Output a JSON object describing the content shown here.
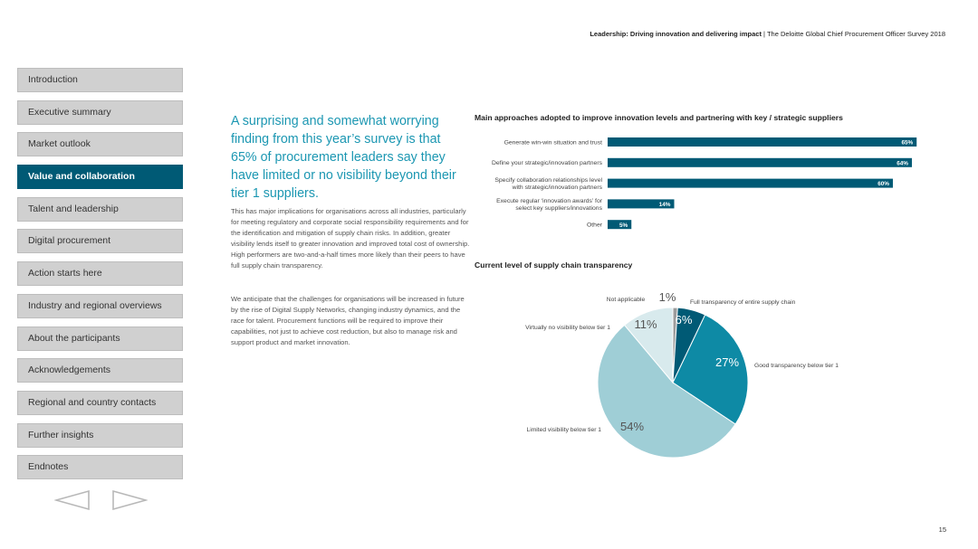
{
  "header": {
    "title_bold": "Leadership: Driving innovation and delivering impact",
    "separator": " | ",
    "title_rest": "The Deloitte Global Chief Procurement Officer Survey 2018"
  },
  "sidebar": {
    "items": [
      {
        "label": "Introduction",
        "active": false
      },
      {
        "label": "Executive summary",
        "active": false
      },
      {
        "label": "Market outlook",
        "active": false
      },
      {
        "label": "Value and collaboration",
        "active": true
      },
      {
        "label": "Talent and leadership",
        "active": false
      },
      {
        "label": "Digital procurement",
        "active": false
      },
      {
        "label": "Action starts here",
        "active": false
      },
      {
        "label": "Industry and regional overviews",
        "active": false
      },
      {
        "label": "About the participants",
        "active": false
      },
      {
        "label": "Acknowledgements",
        "active": false
      },
      {
        "label": "Regional and country contacts",
        "active": false
      },
      {
        "label": "Further insights",
        "active": false
      },
      {
        "label": "Endnotes",
        "active": false
      }
    ]
  },
  "main": {
    "headline": "A surprising and somewhat worrying finding from this year’s survey is that 65% of procurement leaders say they have limited or no visibility beyond their tier 1 suppliers.",
    "paragraph1": "This has major implications for organisations across all industries, particularly for meeting regulatory and corporate social responsibility requirements and for the identification and mitigation of supply chain risks. In addition, greater visibility lends itself to greater innovation and improved total cost of ownership. High performers are two-and-a-half times more likely than their peers to have full supply chain transparency.",
    "paragraph2": "We anticipate that the challenges for organisations will be increased in future by the rise of Digital Supply Networks, changing industry dynamics, and the race for talent. Procurement functions will be required to improve their capabilities, not just to achieve cost reduction, but also to manage risk and support product and market innovation."
  },
  "colors": {
    "accent": "#005a75",
    "headline": "#1c97b2",
    "nav_bg": "#d0d0d0",
    "bar": "#005a75",
    "pie": [
      "#9c9c9c",
      "#005a75",
      "#0e8aa5",
      "#9fced6",
      "#d8eaed"
    ]
  },
  "chart_data": [
    {
      "type": "bar",
      "orientation": "horizontal",
      "title": "Main approaches adopted to improve innovation levels and partnering with key / strategic suppliers",
      "categories": [
        "Generate win-win situation and trust",
        "Define your strategic/innovation partners",
        "Specify collaboration relationships level with strategic/innovation partners",
        "Execute regular ‘innovation awards’ for select key suppliers/innovations",
        "Other"
      ],
      "category_lines": [
        [
          "Generate win-win situation and trust"
        ],
        [
          "Define your strategic/innovation partners"
        ],
        [
          "Specify collaboration relationships level",
          "with strategic/innovation partners"
        ],
        [
          "Execute regular ‘innovation awards’ for",
          "select key suppliers/innovations"
        ],
        [
          "Other"
        ]
      ],
      "values": [
        65,
        64,
        60,
        14,
        5
      ],
      "value_labels": [
        "65%",
        "64%",
        "60%",
        "14%",
        "5%"
      ],
      "xlim": [
        0,
        100
      ],
      "grid": false
    },
    {
      "type": "pie",
      "title": "Current level of supply chain transparency",
      "labels": [
        "Not applicable",
        "Full transparency of entire supply chain",
        "Good transparency below tier 1",
        "Limited visibility below tier 1",
        "Virtually no visibility below tier 1"
      ],
      "values": [
        1,
        6,
        27,
        54,
        11
      ],
      "value_labels": [
        "1%",
        "6%",
        "27%",
        "54%",
        "11%"
      ],
      "legend": "none"
    }
  ],
  "navigation": {
    "prev": "previous-page",
    "next": "next-page"
  },
  "page_number": "15"
}
